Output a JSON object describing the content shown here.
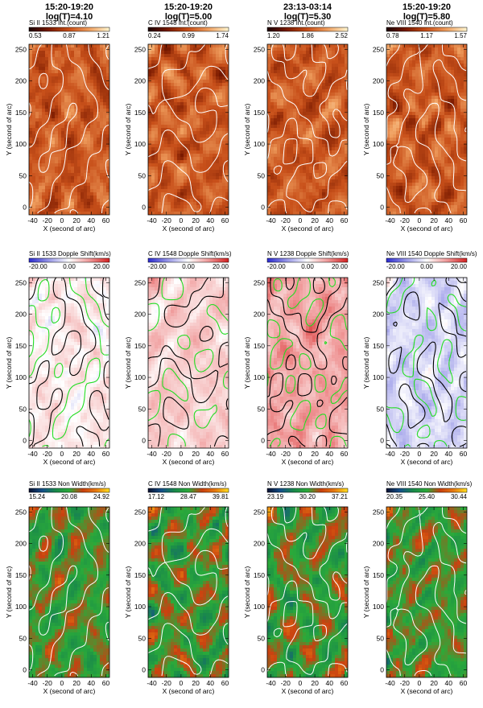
{
  "columns": [
    {
      "time": "15:20-19:20",
      "logT": "log(T)=4.10"
    },
    {
      "time": "15:20-19:20",
      "logT": "log(T)=5.00"
    },
    {
      "time": "23:13-03:14",
      "logT": "log(T)=5.30"
    },
    {
      "time": "15:20-19:20",
      "logT": "log(T)=5.80"
    }
  ],
  "rows": [
    {
      "kind": "intensity",
      "colormap": [
        "#1a0000",
        "#7a1a00",
        "#c8501a",
        "#f0a060",
        "#fff6d0"
      ],
      "contour_color": "#ffffff",
      "panels": [
        {
          "label": "Si II 1533 Int.(count)",
          "ticks": [
            "0.53",
            "0.87",
            "1.21"
          ]
        },
        {
          "label": "C IV 1548 Int.(count)",
          "ticks": [
            "0.24",
            "0.99",
            "1.74"
          ]
        },
        {
          "label": "N V 1238 Int.(count)",
          "ticks": [
            "1.20",
            "1.86",
            "2.52"
          ]
        },
        {
          "label": "Ne VIII 1540 Int.(count)",
          "ticks": [
            "0.78",
            "1.17",
            "1.57"
          ]
        }
      ]
    },
    {
      "kind": "doppler",
      "colormap": [
        "#2a2ad0",
        "#9a9ae8",
        "#ffffff",
        "#f09a9a",
        "#d42020"
      ],
      "contour_colors": [
        "#000000",
        "#22dd22"
      ],
      "panels": [
        {
          "label": "Si II 1533 Dopple Shift(km/s)",
          "ticks": [
            "-20.00",
            "0.00",
            "20.00"
          ]
        },
        {
          "label": "C IV 1548 Dopple Shift(km/s)",
          "ticks": [
            "-20.00",
            "0.00",
            "20.00"
          ]
        },
        {
          "label": "N V 1238 Dopple Shift(km/s)",
          "ticks": [
            "-20.00",
            "0.00",
            "20.00"
          ]
        },
        {
          "label": "Ne VIII 1540 Dopple Shift(km/s)",
          "ticks": [
            "-20.00",
            "0.00",
            "20.00"
          ]
        }
      ]
    },
    {
      "kind": "width",
      "colormap": [
        "#0a1030",
        "#14508a",
        "#1a8a4a",
        "#2aaa3a",
        "#c84010",
        "#e87a10",
        "#ffe020"
      ],
      "contour_color": "#ffffff",
      "panels": [
        {
          "label": "Si II 1533 Non Width(km/s)",
          "ticks": [
            "15.24",
            "20.08",
            "24.92"
          ]
        },
        {
          "label": "C IV 1548 Non Width(km/s)",
          "ticks": [
            "17.12",
            "28.47",
            "39.81"
          ]
        },
        {
          "label": "N V 1238 Non Width(km/s)",
          "ticks": [
            "23.19",
            "30.20",
            "37.21"
          ]
        },
        {
          "label": "Ne VIII 1540 Non Width(km/s)",
          "ticks": [
            "20.35",
            "25.40",
            "30.44"
          ]
        }
      ]
    }
  ],
  "axes": {
    "xlabel": "X (second of arc)",
    "ylabel": "Y (second of arc)",
    "xticks": [
      "-40",
      "-20",
      "0",
      "20",
      "40",
      "60"
    ],
    "yticks": [
      "0",
      "50",
      "100",
      "150",
      "200",
      "250"
    ]
  }
}
